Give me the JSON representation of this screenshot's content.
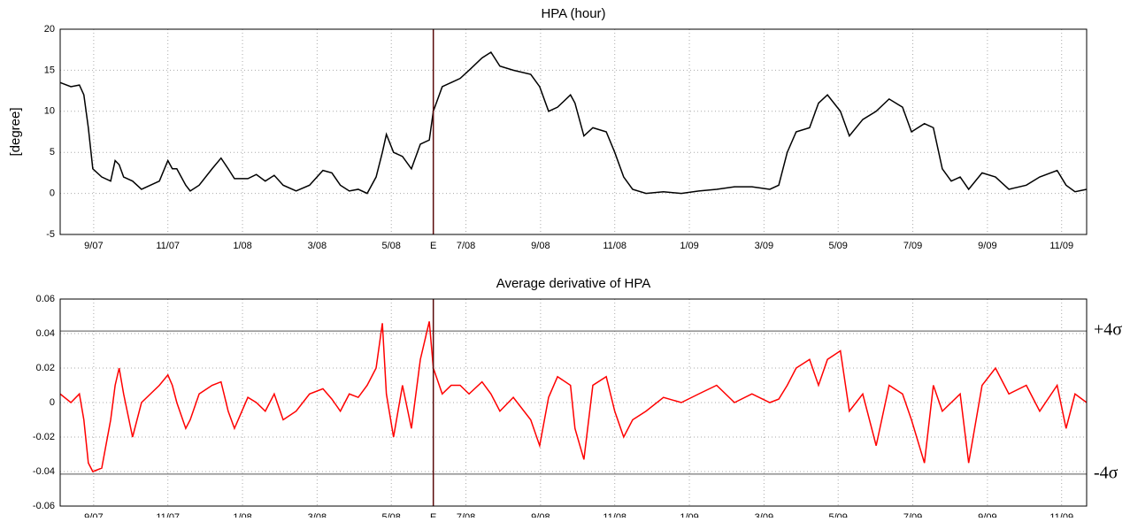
{
  "chart_data": [
    {
      "type": "line",
      "title": "HPA (hour)",
      "ylabel": "[degree]",
      "color": "#000000",
      "grid": true,
      "xlim": [
        2007.592,
        2009.889
      ],
      "ylim": [
        -5,
        20
      ],
      "yticks": [
        -5,
        0,
        5,
        10,
        15,
        20
      ],
      "xticks": [
        {
          "value": 2007.667,
          "label": "9/07"
        },
        {
          "value": 2007.833,
          "label": "11/07"
        },
        {
          "value": 2008.0,
          "label": "1/08"
        },
        {
          "value": 2008.167,
          "label": "3/08"
        },
        {
          "value": 2008.333,
          "label": "5/08"
        },
        {
          "value": 2008.5,
          "label": "7/08"
        },
        {
          "value": 2008.667,
          "label": "9/08"
        },
        {
          "value": 2008.833,
          "label": "11/08"
        },
        {
          "value": 2009.0,
          "label": "1/09"
        },
        {
          "value": 2009.167,
          "label": "3/09"
        },
        {
          "value": 2009.333,
          "label": "5/09"
        },
        {
          "value": 2009.5,
          "label": "7/09"
        },
        {
          "value": 2009.667,
          "label": "9/09"
        },
        {
          "value": 2009.833,
          "label": "11/09"
        }
      ],
      "event": {
        "x": 2008.427,
        "label": "E",
        "color": "#5a0a0a"
      },
      "x": [
        2007.592,
        2007.616,
        2007.635,
        2007.645,
        2007.655,
        2007.665,
        2007.685,
        2007.705,
        2007.715,
        2007.724,
        2007.734,
        2007.754,
        2007.774,
        2007.794,
        2007.814,
        2007.833,
        2007.843,
        2007.853,
        2007.873,
        2007.883,
        2007.903,
        2007.932,
        2007.952,
        2007.968,
        2007.982,
        2008.012,
        2008.031,
        2008.051,
        2008.071,
        2008.091,
        2008.12,
        2008.15,
        2008.18,
        2008.2,
        2008.219,
        2008.239,
        2008.259,
        2008.279,
        2008.299,
        2008.313,
        2008.322,
        2008.338,
        2008.358,
        2008.378,
        2008.398,
        2008.418,
        2008.427,
        2008.447,
        2008.467,
        2008.487,
        2008.507,
        2008.536,
        2008.556,
        2008.576,
        2008.606,
        2008.645,
        2008.665,
        2008.685,
        2008.705,
        2008.734,
        2008.744,
        2008.764,
        2008.784,
        2008.814,
        2008.833,
        2008.853,
        2008.873,
        2008.903,
        2008.942,
        2008.982,
        2009.021,
        2009.061,
        2009.101,
        2009.14,
        2009.18,
        2009.2,
        2009.219,
        2009.239,
        2009.269,
        2009.289,
        2009.309,
        2009.338,
        2009.358,
        2009.388,
        2009.418,
        2009.447,
        2009.477,
        2009.497,
        2009.526,
        2009.546,
        2009.566,
        2009.586,
        2009.606,
        2009.625,
        2009.655,
        2009.685,
        2009.715,
        2009.754,
        2009.784,
        2009.823,
        2009.843,
        2009.863,
        2009.889
      ],
      "values": [
        13.5,
        13,
        13.2,
        12,
        8,
        3,
        2,
        1.5,
        4,
        3.5,
        2,
        1.5,
        0.5,
        1,
        1.5,
        4,
        3,
        3,
        1,
        0.3,
        1,
        3,
        4.3,
        3,
        1.8,
        1.8,
        2.3,
        1.5,
        2.2,
        1,
        0.3,
        1,
        2.8,
        2.5,
        1,
        0.3,
        0.5,
        0,
        2,
        5,
        7.2,
        5,
        4.5,
        3,
        6,
        6.5,
        10,
        13,
        13.5,
        14,
        15,
        16.5,
        17.2,
        15.5,
        15,
        14.5,
        13,
        10,
        10.5,
        12,
        11,
        7,
        8,
        7.5,
        5,
        2,
        0.5,
        0,
        0.2,
        0,
        0.3,
        0.5,
        0.8,
        0.8,
        0.5,
        1,
        5,
        7.5,
        8,
        11,
        12,
        10,
        7,
        9,
        10,
        11.5,
        10.5,
        7.5,
        8.5,
        8,
        3,
        1.5,
        2,
        0.5,
        2.5,
        2,
        0.5,
        1,
        2,
        2.8,
        1,
        0.2,
        0.5
      ]
    },
    {
      "type": "line",
      "title": "Average derivative of HPA",
      "color": "#ff0000",
      "grid": true,
      "xlim": [
        2007.592,
        2009.889
      ],
      "ylim": [
        -0.06,
        0.06
      ],
      "yticks": [
        -0.06,
        -0.04,
        -0.02,
        0,
        0.02,
        0.04,
        0.06
      ],
      "xticks": [
        {
          "value": 2007.667,
          "label": "9/07"
        },
        {
          "value": 2007.833,
          "label": "11/07"
        },
        {
          "value": 2008.0,
          "label": "1/08"
        },
        {
          "value": 2008.167,
          "label": "3/08"
        },
        {
          "value": 2008.333,
          "label": "5/08"
        },
        {
          "value": 2008.5,
          "label": "7/08"
        },
        {
          "value": 2008.667,
          "label": "9/08"
        },
        {
          "value": 2008.833,
          "label": "11/08"
        },
        {
          "value": 2009.0,
          "label": "1/09"
        },
        {
          "value": 2009.167,
          "label": "3/09"
        },
        {
          "value": 2009.333,
          "label": "5/09"
        },
        {
          "value": 2009.5,
          "label": "7/09"
        },
        {
          "value": 2009.667,
          "label": "9/09"
        },
        {
          "value": 2009.833,
          "label": "11/09"
        }
      ],
      "event": {
        "x": 2008.427,
        "label": "E",
        "color": "#5a0a0a"
      },
      "thresholds": [
        {
          "value": 0.0415,
          "label": "+4σ"
        },
        {
          "value": -0.0415,
          "label": "-4σ"
        }
      ],
      "x": [
        2007.592,
        2007.616,
        2007.635,
        2007.645,
        2007.655,
        2007.665,
        2007.685,
        2007.705,
        2007.715,
        2007.724,
        2007.734,
        2007.754,
        2007.774,
        2007.794,
        2007.814,
        2007.833,
        2007.843,
        2007.853,
        2007.873,
        2007.883,
        2007.903,
        2007.932,
        2007.952,
        2007.968,
        2007.982,
        2008.012,
        2008.031,
        2008.051,
        2008.071,
        2008.091,
        2008.12,
        2008.15,
        2008.18,
        2008.2,
        2008.219,
        2008.239,
        2008.259,
        2008.279,
        2008.299,
        2008.313,
        2008.322,
        2008.338,
        2008.358,
        2008.378,
        2008.398,
        2008.418,
        2008.427,
        2008.447,
        2008.467,
        2008.487,
        2008.507,
        2008.536,
        2008.556,
        2008.576,
        2008.606,
        2008.645,
        2008.665,
        2008.685,
        2008.705,
        2008.734,
        2008.744,
        2008.764,
        2008.784,
        2008.814,
        2008.833,
        2008.853,
        2008.873,
        2008.903,
        2008.942,
        2008.982,
        2009.021,
        2009.061,
        2009.101,
        2009.14,
        2009.18,
        2009.2,
        2009.219,
        2009.239,
        2009.269,
        2009.289,
        2009.309,
        2009.338,
        2009.358,
        2009.388,
        2009.418,
        2009.447,
        2009.477,
        2009.497,
        2009.526,
        2009.546,
        2009.566,
        2009.586,
        2009.606,
        2009.625,
        2009.655,
        2009.685,
        2009.715,
        2009.754,
        2009.784,
        2009.823,
        2009.843,
        2009.863,
        2009.889
      ],
      "values": [
        0.005,
        0,
        0.005,
        -0.01,
        -0.035,
        -0.04,
        -0.038,
        -0.01,
        0.01,
        0.02,
        0.005,
        -0.02,
        0,
        0.005,
        0.01,
        0.016,
        0.01,
        0,
        -0.015,
        -0.01,
        0.005,
        0.01,
        0.012,
        -0.005,
        -0.015,
        0.003,
        0,
        -0.005,
        0.005,
        -0.01,
        -0.005,
        0.005,
        0.008,
        0.002,
        -0.005,
        0.005,
        0.003,
        0.01,
        0.02,
        0.046,
        0.005,
        -0.02,
        0.01,
        -0.015,
        0.025,
        0.047,
        0.02,
        0.005,
        0.01,
        0.01,
        0.005,
        0.012,
        0.005,
        -0.005,
        0.003,
        -0.01,
        -0.025,
        0.003,
        0.015,
        0.01,
        -0.015,
        -0.033,
        0.01,
        0.015,
        -0.005,
        -0.02,
        -0.01,
        -0.005,
        0.003,
        0,
        0.005,
        0.01,
        0,
        0.005,
        0,
        0.002,
        0.01,
        0.02,
        0.025,
        0.01,
        0.025,
        0.03,
        -0.005,
        0.005,
        -0.025,
        0.01,
        0.005,
        -0.01,
        -0.035,
        0.01,
        -0.005,
        0,
        0.005,
        -0.035,
        0.01,
        0.02,
        0.005,
        0.01,
        -0.005,
        0.01,
        -0.015,
        0.005,
        0
      ]
    }
  ]
}
